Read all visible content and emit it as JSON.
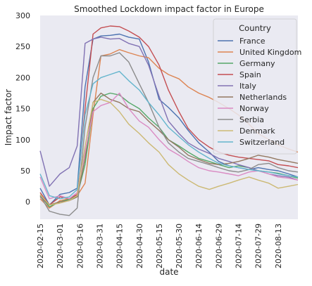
{
  "chart_data": {
    "type": "line",
    "title": "Smoothed Lockdown impact factor in Europe",
    "xlabel": "date",
    "ylabel": "Impact factor",
    "x_ticks": [
      "2020-02-15",
      "2020-03-01",
      "2020-03-16",
      "2020-03-31",
      "2020-04-15",
      "2020-04-30",
      "2020-05-15",
      "2020-05-30",
      "2020-06-14",
      "2020-06-29",
      "2020-07-14",
      "2020-07-29",
      "2020-08-13"
    ],
    "y_ticks": [
      0,
      50,
      100,
      150,
      200,
      250,
      300
    ],
    "xlim": [
      "2020-02-15",
      "2020-08-28"
    ],
    "ylim": [
      -28,
      300
    ],
    "grid": false,
    "background": "#eaeaf2",
    "legend": {
      "title": "Country",
      "placement": "top-right"
    },
    "series": [
      {
        "name": "France",
        "color": "#4c72b0",
        "x": [
          "2020-02-15",
          "2020-02-22",
          "2020-03-01",
          "2020-03-08",
          "2020-03-14",
          "2020-03-20",
          "2020-03-26",
          "2020-04-01",
          "2020-04-08",
          "2020-04-15",
          "2020-04-22",
          "2020-04-30",
          "2020-05-07",
          "2020-05-15",
          "2020-05-22",
          "2020-05-30",
          "2020-06-06",
          "2020-06-14",
          "2020-06-22",
          "2020-06-29",
          "2020-07-07",
          "2020-07-14",
          "2020-07-22",
          "2020-07-29",
          "2020-08-06",
          "2020-08-13",
          "2020-08-21",
          "2020-08-28"
        ],
        "values": [
          22,
          -5,
          12,
          15,
          22,
          185,
          262,
          267,
          268,
          270,
          265,
          262,
          225,
          165,
          152,
          135,
          115,
          95,
          80,
          65,
          58,
          55,
          52,
          55,
          52,
          50,
          45,
          40
        ]
      },
      {
        "name": "United Kingdom",
        "color": "#dd8452",
        "x": [
          "2020-02-15",
          "2020-02-22",
          "2020-03-01",
          "2020-03-08",
          "2020-03-14",
          "2020-03-20",
          "2020-03-26",
          "2020-04-01",
          "2020-04-08",
          "2020-04-15",
          "2020-04-22",
          "2020-04-30",
          "2020-05-07",
          "2020-05-15",
          "2020-05-22",
          "2020-05-30",
          "2020-06-06",
          "2020-06-14",
          "2020-06-22",
          "2020-06-29",
          "2020-07-07",
          "2020-07-14",
          "2020-07-22",
          "2020-07-29",
          "2020-08-06",
          "2020-08-13",
          "2020-08-21",
          "2020-08-28"
        ],
        "values": [
          5,
          -10,
          2,
          5,
          10,
          30,
          140,
          235,
          238,
          245,
          240,
          235,
          232,
          215,
          205,
          198,
          185,
          175,
          168,
          160,
          150,
          140,
          125,
          110,
          100,
          92,
          85,
          80
        ]
      },
      {
        "name": "Germany",
        "color": "#55a868",
        "x": [
          "2020-02-15",
          "2020-02-22",
          "2020-03-01",
          "2020-03-08",
          "2020-03-14",
          "2020-03-20",
          "2020-03-26",
          "2020-04-01",
          "2020-04-08",
          "2020-04-15",
          "2020-04-22",
          "2020-04-30",
          "2020-05-07",
          "2020-05-15",
          "2020-05-22",
          "2020-05-30",
          "2020-06-06",
          "2020-06-14",
          "2020-06-22",
          "2020-06-29",
          "2020-07-07",
          "2020-07-14",
          "2020-07-22",
          "2020-07-29",
          "2020-08-06",
          "2020-08-13",
          "2020-08-21",
          "2020-08-28"
        ],
        "values": [
          10,
          -8,
          0,
          4,
          10,
          60,
          150,
          170,
          175,
          172,
          160,
          150,
          135,
          120,
          100,
          90,
          80,
          70,
          65,
          60,
          55,
          58,
          55,
          50,
          48,
          46,
          42,
          38
        ]
      },
      {
        "name": "Spain",
        "color": "#c44e52",
        "x": [
          "2020-02-15",
          "2020-02-22",
          "2020-03-01",
          "2020-03-08",
          "2020-03-14",
          "2020-03-20",
          "2020-03-26",
          "2020-04-01",
          "2020-04-08",
          "2020-04-15",
          "2020-04-22",
          "2020-04-30",
          "2020-05-07",
          "2020-05-15",
          "2020-05-22",
          "2020-05-30",
          "2020-06-06",
          "2020-06-14",
          "2020-06-22",
          "2020-06-29",
          "2020-07-07",
          "2020-07-14",
          "2020-07-22",
          "2020-07-29",
          "2020-08-06",
          "2020-08-13",
          "2020-08-21",
          "2020-08-28"
        ],
        "values": [
          15,
          -5,
          8,
          5,
          12,
          150,
          270,
          280,
          283,
          282,
          275,
          265,
          250,
          220,
          180,
          145,
          118,
          100,
          88,
          80,
          75,
          72,
          70,
          68,
          66,
          60,
          58,
          55
        ]
      },
      {
        "name": "Italy",
        "color": "#8172b3",
        "x": [
          "2020-02-15",
          "2020-02-22",
          "2020-03-01",
          "2020-03-08",
          "2020-03-14",
          "2020-03-20",
          "2020-03-26",
          "2020-04-01",
          "2020-04-08",
          "2020-04-15",
          "2020-04-22",
          "2020-04-30",
          "2020-05-07",
          "2020-05-15",
          "2020-05-22",
          "2020-05-30",
          "2020-06-06",
          "2020-06-14",
          "2020-06-22",
          "2020-06-29",
          "2020-07-07",
          "2020-07-14",
          "2020-07-22",
          "2020-07-29",
          "2020-08-06",
          "2020-08-13",
          "2020-08-21",
          "2020-08-28"
        ],
        "values": [
          82,
          25,
          45,
          55,
          90,
          255,
          262,
          265,
          262,
          263,
          255,
          250,
          220,
          170,
          130,
          110,
          95,
          85,
          78,
          70,
          65,
          60,
          55,
          50,
          45,
          42,
          40,
          35
        ]
      },
      {
        "name": "Netherlands",
        "color": "#937860",
        "x": [
          "2020-02-15",
          "2020-02-22",
          "2020-03-01",
          "2020-03-08",
          "2020-03-14",
          "2020-03-20",
          "2020-03-26",
          "2020-04-01",
          "2020-04-08",
          "2020-04-15",
          "2020-04-22",
          "2020-04-30",
          "2020-05-07",
          "2020-05-15",
          "2020-05-22",
          "2020-05-30",
          "2020-06-06",
          "2020-06-14",
          "2020-06-22",
          "2020-06-29",
          "2020-07-07",
          "2020-07-14",
          "2020-07-22",
          "2020-07-29",
          "2020-08-06",
          "2020-08-13",
          "2020-08-21",
          "2020-08-28"
        ],
        "values": [
          8,
          -5,
          0,
          2,
          8,
          70,
          160,
          175,
          165,
          160,
          150,
          145,
          130,
          115,
          100,
          88,
          75,
          68,
          62,
          60,
          62,
          65,
          70,
          75,
          72,
          68,
          65,
          62
        ]
      },
      {
        "name": "Norway",
        "color": "#da8bc3",
        "x": [
          "2020-02-15",
          "2020-02-22",
          "2020-03-01",
          "2020-03-08",
          "2020-03-14",
          "2020-03-20",
          "2020-03-26",
          "2020-04-01",
          "2020-04-08",
          "2020-04-15",
          "2020-04-22",
          "2020-04-30",
          "2020-05-07",
          "2020-05-15",
          "2020-05-22",
          "2020-05-30",
          "2020-06-06",
          "2020-06-14",
          "2020-06-22",
          "2020-06-29",
          "2020-07-07",
          "2020-07-14",
          "2020-07-22",
          "2020-07-29",
          "2020-08-06",
          "2020-08-13",
          "2020-08-21",
          "2020-08-28"
        ],
        "values": [
          40,
          5,
          10,
          5,
          15,
          80,
          145,
          155,
          160,
          175,
          150,
          130,
          120,
          100,
          85,
          75,
          65,
          55,
          50,
          48,
          45,
          42,
          48,
          50,
          45,
          40,
          38,
          35
        ]
      },
      {
        "name": "Serbia",
        "color": "#8c8c8c",
        "x": [
          "2020-02-15",
          "2020-02-22",
          "2020-03-01",
          "2020-03-08",
          "2020-03-14",
          "2020-03-20",
          "2020-03-26",
          "2020-04-01",
          "2020-04-08",
          "2020-04-15",
          "2020-04-22",
          "2020-04-30",
          "2020-05-07",
          "2020-05-15",
          "2020-05-22",
          "2020-05-30",
          "2020-06-06",
          "2020-06-14",
          "2020-06-22",
          "2020-06-29",
          "2020-07-07",
          "2020-07-14",
          "2020-07-22",
          "2020-07-29",
          "2020-08-06",
          "2020-08-13",
          "2020-08-21",
          "2020-08-28"
        ],
        "values": [
          10,
          -15,
          -20,
          -22,
          -10,
          120,
          200,
          235,
          235,
          240,
          225,
          190,
          160,
          120,
          95,
          80,
          70,
          65,
          60,
          55,
          50,
          48,
          52,
          60,
          62,
          55,
          50,
          48
        ]
      },
      {
        "name": "Denmark",
        "color": "#ccb974",
        "x": [
          "2020-02-15",
          "2020-02-22",
          "2020-03-01",
          "2020-03-08",
          "2020-03-14",
          "2020-03-20",
          "2020-03-26",
          "2020-04-01",
          "2020-04-08",
          "2020-04-15",
          "2020-04-22",
          "2020-04-30",
          "2020-05-07",
          "2020-05-15",
          "2020-05-22",
          "2020-05-30",
          "2020-06-06",
          "2020-06-14",
          "2020-06-22",
          "2020-06-29",
          "2020-07-07",
          "2020-07-14",
          "2020-07-22",
          "2020-07-29",
          "2020-08-06",
          "2020-08-13",
          "2020-08-21",
          "2020-08-28"
        ],
        "values": [
          12,
          -5,
          -2,
          2,
          10,
          90,
          160,
          165,
          160,
          145,
          125,
          110,
          95,
          80,
          60,
          45,
          35,
          25,
          20,
          25,
          30,
          35,
          40,
          35,
          30,
          22,
          25,
          28
        ]
      },
      {
        "name": "Switzerland",
        "color": "#64b5cd",
        "x": [
          "2020-02-15",
          "2020-02-22",
          "2020-03-01",
          "2020-03-08",
          "2020-03-14",
          "2020-03-20",
          "2020-03-26",
          "2020-04-01",
          "2020-04-08",
          "2020-04-15",
          "2020-04-22",
          "2020-04-30",
          "2020-05-07",
          "2020-05-15",
          "2020-05-22",
          "2020-05-30",
          "2020-06-06",
          "2020-06-14",
          "2020-06-22",
          "2020-06-29",
          "2020-07-07",
          "2020-07-14",
          "2020-07-22",
          "2020-07-29",
          "2020-08-06",
          "2020-08-13",
          "2020-08-21",
          "2020-08-28"
        ],
        "values": [
          45,
          10,
          5,
          8,
          20,
          140,
          190,
          200,
          205,
          210,
          195,
          180,
          160,
          140,
          120,
          105,
          92,
          80,
          70,
          62,
          58,
          55,
          52,
          50,
          48,
          45,
          42,
          40
        ]
      }
    ]
  }
}
